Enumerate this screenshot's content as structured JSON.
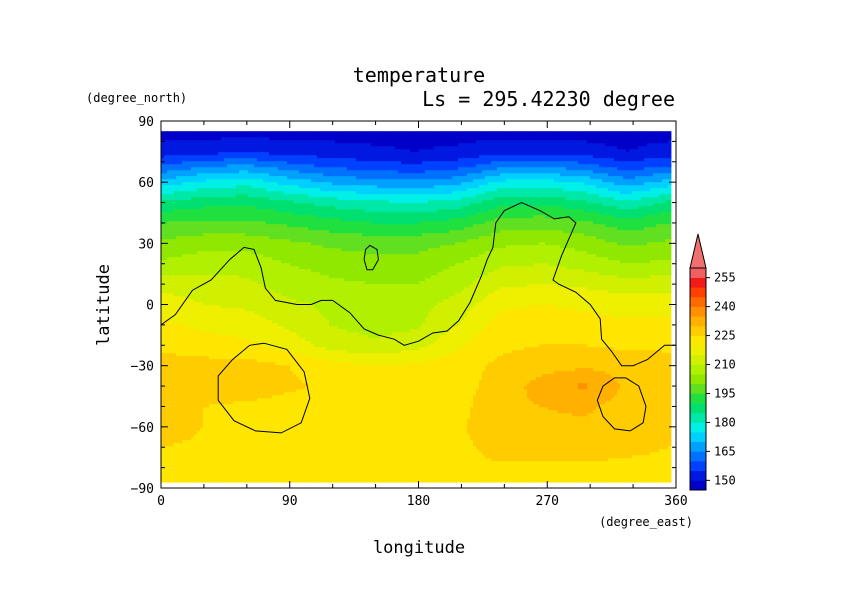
{
  "chart_data": {
    "type": "heatmap",
    "title": "temperature",
    "subtitle": "Ls = 295.42230 degree",
    "xlabel": "longitude",
    "ylabel": "latitude",
    "x_unit": "(degree_east)",
    "y_unit": "(degree_north)",
    "xlim": [
      0,
      360
    ],
    "ylim": [
      -90,
      90
    ],
    "data_lat_range": [
      -87,
      85
    ],
    "xticks": [
      0,
      90,
      180,
      270,
      360
    ],
    "yticks": [
      90,
      60,
      30,
      0,
      -30,
      -60,
      -90
    ],
    "xtick_labels": [
      "0",
      "90",
      "180",
      "270",
      "360"
    ],
    "ytick_labels": [
      "90",
      "60",
      "30",
      "0",
      "−30",
      "−60",
      "−90"
    ],
    "colorbar": {
      "labels": [
        "255",
        "240",
        "225",
        "210",
        "195",
        "180",
        "165",
        "150"
      ],
      "label_values": [
        255,
        240,
        225,
        210,
        195,
        180,
        165,
        150
      ],
      "levels": [
        145,
        150,
        155,
        160,
        165,
        170,
        175,
        180,
        185,
        190,
        195,
        200,
        205,
        210,
        215,
        220,
        225,
        230,
        235,
        240,
        245,
        250,
        255,
        260
      ],
      "colors": [
        "#0000c8",
        "#0018e0",
        "#0040ff",
        "#0070ff",
        "#00a0ff",
        "#00d0ff",
        "#00f0e8",
        "#00e8a8",
        "#00e070",
        "#20e040",
        "#60e020",
        "#90e800",
        "#b0f000",
        "#d0f000",
        "#eef000",
        "#ffe600",
        "#ffcc00",
        "#ffb000",
        "#ff9000",
        "#ff6a00",
        "#ff4000",
        "#f51a1a",
        "#f06060"
      ],
      "over_color": "#f07070"
    },
    "temperature_grid": {
      "lon": [
        0,
        30,
        60,
        90,
        120,
        150,
        180,
        210,
        240,
        270,
        300,
        330,
        360
      ],
      "lat": [
        85,
        75,
        68,
        60,
        50,
        40,
        30,
        20,
        10,
        0,
        -10,
        -20,
        -30,
        -40,
        -50,
        -60,
        -70,
        -80,
        -87
      ],
      "rows": [
        [
          148,
          148,
          148,
          148,
          148,
          148,
          148,
          148,
          148,
          148,
          148,
          148,
          148
        ],
        [
          152,
          153,
          154,
          153,
          152,
          151,
          150,
          151,
          153,
          153,
          152,
          150,
          152
        ],
        [
          160,
          164,
          166,
          162,
          159,
          157,
          156,
          158,
          163,
          164,
          162,
          157,
          160
        ],
        [
          172,
          176,
          178,
          173,
          169,
          167,
          166,
          168,
          176,
          177,
          174,
          167,
          172
        ],
        [
          186,
          188,
          189,
          186,
          183,
          181,
          180,
          182,
          188,
          189,
          186,
          181,
          186
        ],
        [
          195,
          196,
          196,
          194,
          192,
          190,
          190,
          192,
          197,
          198,
          196,
          192,
          195
        ],
        [
          201,
          203,
          203,
          201,
          199,
          198,
          198,
          200,
          204,
          205,
          203,
          199,
          201
        ],
        [
          206,
          208,
          208,
          205,
          203,
          202,
          202,
          205,
          209,
          210,
          208,
          205,
          206
        ],
        [
          213,
          212,
          211,
          208,
          206,
          205,
          205,
          208,
          214,
          215,
          214,
          212,
          213
        ],
        [
          218,
          215,
          214,
          211,
          209,
          208,
          208,
          212,
          219,
          220,
          219,
          218,
          218
        ],
        [
          221,
          219,
          218,
          214,
          210,
          208,
          209,
          215,
          222,
          223,
          222,
          221,
          221
        ],
        [
          224,
          222,
          221,
          218,
          213,
          211,
          213,
          219,
          224,
          225,
          225,
          224,
          224
        ],
        [
          227,
          227,
          227,
          225,
          222,
          220,
          221,
          223,
          226,
          228,
          229,
          228,
          227
        ],
        [
          227,
          228,
          228,
          226,
          224,
          222,
          222,
          223,
          227,
          232,
          236,
          229,
          227
        ],
        [
          227,
          225,
          224,
          223,
          222,
          222,
          222,
          223,
          229,
          230,
          231,
          228,
          227
        ],
        [
          228,
          225,
          224,
          223,
          222,
          222,
          222,
          224,
          229,
          229,
          229,
          228,
          228
        ],
        [
          225,
          224,
          224,
          223,
          222,
          222,
          222,
          223,
          228,
          228,
          228,
          227,
          225
        ],
        [
          223,
          223,
          223,
          223,
          222,
          222,
          222,
          222,
          224,
          224,
          224,
          223,
          223
        ],
        [
          222,
          222,
          222,
          222,
          222,
          222,
          222,
          222,
          222,
          222,
          222,
          222,
          222
        ]
      ]
    },
    "contours": [
      {
        "name": "topography-contour-main",
        "points": [
          [
            0,
            -10
          ],
          [
            10,
            -5
          ],
          [
            22,
            7
          ],
          [
            35,
            12
          ],
          [
            48,
            22
          ],
          [
            58,
            28
          ],
          [
            65,
            27
          ],
          [
            70,
            18
          ],
          [
            73,
            8
          ],
          [
            80,
            2
          ],
          [
            95,
            0
          ],
          [
            105,
            0
          ],
          [
            112,
            2
          ],
          [
            120,
            2
          ],
          [
            132,
            -4
          ],
          [
            142,
            -12
          ],
          [
            152,
            -15
          ],
          [
            163,
            -17
          ],
          [
            170,
            -20
          ],
          [
            180,
            -18
          ],
          [
            190,
            -14
          ],
          [
            200,
            -13
          ],
          [
            208,
            -8
          ],
          [
            216,
            1
          ],
          [
            224,
            14
          ],
          [
            228,
            22
          ],
          [
            232,
            28
          ],
          [
            234,
            40
          ],
          [
            240,
            46
          ],
          [
            252,
            50
          ],
          [
            265,
            46
          ],
          [
            275,
            42
          ],
          [
            285,
            43
          ],
          [
            290,
            40
          ],
          [
            285,
            32
          ],
          [
            280,
            24
          ],
          [
            274,
            12
          ],
          [
            278,
            10
          ],
          [
            290,
            6
          ],
          [
            300,
            0
          ],
          [
            307,
            -7
          ],
          [
            308,
            -17
          ],
          [
            315,
            -23
          ],
          [
            322,
            -30
          ],
          [
            330,
            -30
          ],
          [
            340,
            -27
          ],
          [
            352,
            -20
          ],
          [
            360,
            -20
          ]
        ]
      },
      {
        "name": "topography-contour-island",
        "points": [
          [
            142,
            22
          ],
          [
            143,
            27
          ],
          [
            146,
            29
          ],
          [
            151,
            27
          ],
          [
            152,
            22
          ],
          [
            148,
            17
          ],
          [
            144,
            17
          ],
          [
            142,
            22
          ]
        ]
      },
      {
        "name": "topography-contour-west-crater",
        "points": [
          [
            72,
            -19
          ],
          [
            88,
            -22
          ],
          [
            100,
            -33
          ],
          [
            104,
            -46
          ],
          [
            98,
            -58
          ],
          [
            84,
            -63
          ],
          [
            66,
            -62
          ],
          [
            51,
            -57
          ],
          [
            40,
            -47
          ],
          [
            40,
            -35
          ],
          [
            50,
            -27
          ],
          [
            62,
            -20
          ],
          [
            72,
            -19
          ]
        ]
      },
      {
        "name": "topography-contour-east-crater",
        "points": [
          [
            325,
            -36
          ],
          [
            334,
            -40
          ],
          [
            339,
            -50
          ],
          [
            337,
            -58
          ],
          [
            328,
            -62
          ],
          [
            317,
            -61
          ],
          [
            309,
            -55
          ],
          [
            305,
            -47
          ],
          [
            309,
            -40
          ],
          [
            317,
            -36
          ],
          [
            325,
            -36
          ]
        ]
      }
    ]
  }
}
